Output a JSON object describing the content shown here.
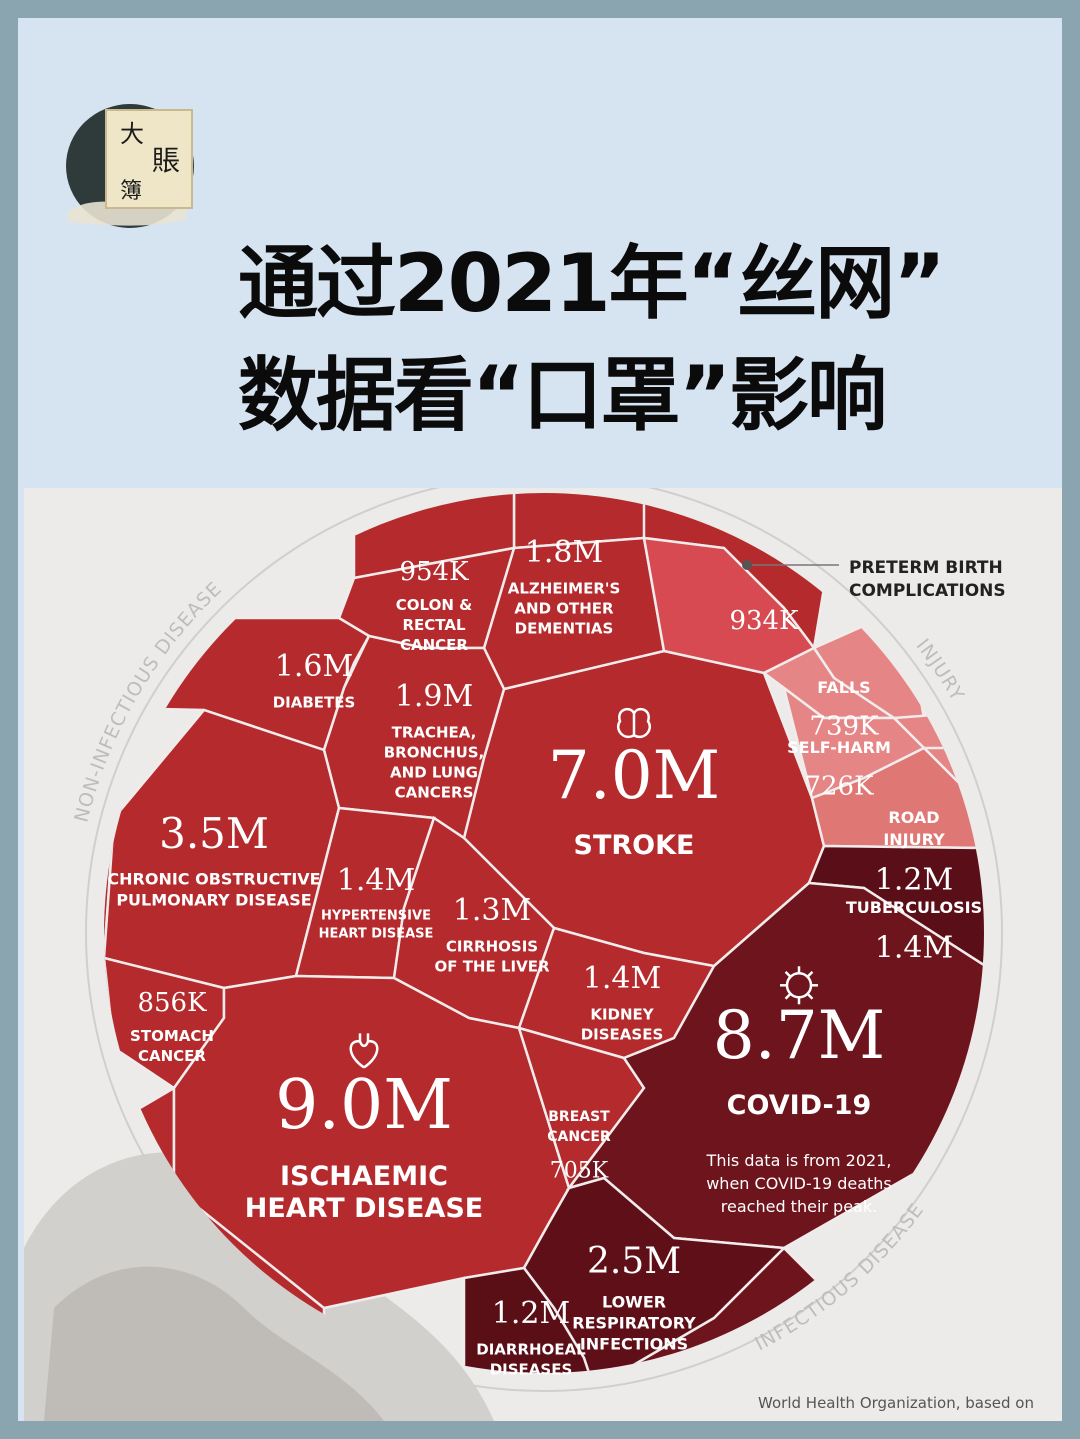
{
  "header": {
    "logo_text": [
      "大",
      "賬",
      "簿"
    ],
    "headline_line1": "通过2021年“丝网”",
    "headline_line2": "数据看“口罩”影响"
  },
  "chart_data": {
    "type": "voronoi",
    "unit": "deaths",
    "groups": [
      {
        "name": "NON-INFECTIOUS DISEASE",
        "color": "#b52a2d"
      },
      {
        "name": "INJURY",
        "color": "#e58585"
      },
      {
        "name": "INFECTIOUS DISEASE",
        "color": "#6e141c"
      }
    ],
    "cells": [
      {
        "id": "ischaemic",
        "group": "NON-INFECTIOUS DISEASE",
        "value_label": "9.0M",
        "value": 9.0,
        "label": [
          "ISCHAEMIC",
          "HEART DISEASE"
        ],
        "icon": "heart-icon"
      },
      {
        "id": "covid",
        "group": "INFECTIOUS DISEASE",
        "value_label": "8.7M",
        "value": 8.7,
        "label": [
          "COVID-19"
        ],
        "icon": "virus-icon",
        "note": [
          "This data is from 2021,",
          "when COVID-19 deaths",
          "reached their peak."
        ]
      },
      {
        "id": "stroke",
        "group": "NON-INFECTIOUS DISEASE",
        "value_label": "7.0M",
        "value": 7.0,
        "label": [
          "STROKE"
        ],
        "icon": "brain-icon"
      },
      {
        "id": "copd",
        "group": "NON-INFECTIOUS DISEASE",
        "value_label": "3.5M",
        "value": 3.5,
        "label": [
          "CHRONIC OBSTRUCTIVE",
          "PULMONARY DISEASE"
        ]
      },
      {
        "id": "lri",
        "group": "INFECTIOUS DISEASE",
        "value_label": "2.5M",
        "value": 2.5,
        "label": [
          "LOWER",
          "RESPIRATORY",
          "INFECTIONS"
        ]
      },
      {
        "id": "trachea",
        "group": "NON-INFECTIOUS DISEASE",
        "value_label": "1.9M",
        "value": 1.9,
        "label": [
          "TRACHEA,",
          "BRONCHUS,",
          "AND LUNG",
          "CANCERS"
        ]
      },
      {
        "id": "alz",
        "group": "NON-INFECTIOUS DISEASE",
        "value_label": "1.8M",
        "value": 1.8,
        "label": [
          "ALZHEIMER'S",
          "AND OTHER",
          "DEMENTIAS"
        ]
      },
      {
        "id": "diabetes",
        "group": "NON-INFECTIOUS DISEASE",
        "value_label": "1.6M",
        "value": 1.6,
        "label": [
          "DIABETES"
        ]
      },
      {
        "id": "hypert",
        "group": "NON-INFECTIOUS DISEASE",
        "value_label": "1.4M",
        "value": 1.4,
        "label": [
          "HYPERTENSIVE",
          "HEART DISEASE"
        ]
      },
      {
        "id": "kidney",
        "group": "NON-INFECTIOUS DISEASE",
        "value_label": "1.4M",
        "value": 1.4,
        "label": [
          "KIDNEY",
          "DISEASES"
        ]
      },
      {
        "id": "tb",
        "group": "INFECTIOUS DISEASE",
        "value_label": "1.4M",
        "value": 1.4,
        "label": [
          "TUBERCULOSIS"
        ]
      },
      {
        "id": "cirrhosis",
        "group": "NON-INFECTIOUS DISEASE",
        "value_label": "1.3M",
        "value": 1.3,
        "label": [
          "CIRRHOSIS",
          "OF THE LIVER"
        ]
      },
      {
        "id": "road",
        "group": "INJURY",
        "value_label": "1.2M",
        "value": 1.2,
        "label": [
          "ROAD",
          "INJURY"
        ]
      },
      {
        "id": "diarrhoeal",
        "group": "INFECTIOUS DISEASE",
        "value_label": "1.2M",
        "value": 1.2,
        "label": [
          "DIARRHOEAL",
          "DISEASES"
        ]
      },
      {
        "id": "colon",
        "group": "NON-INFECTIOUS DISEASE",
        "value_label": "954K",
        "value": 0.954,
        "label": [
          "COLON &",
          "RECTAL",
          "CANCER"
        ]
      },
      {
        "id": "preterm",
        "group": "NON-INFECTIOUS DISEASE",
        "value_label": "934K",
        "value": 0.934,
        "label": [
          "PRETERM BIRTH",
          "COMPLICATIONS"
        ]
      },
      {
        "id": "stomach",
        "group": "NON-INFECTIOUS DISEASE",
        "value_label": "856K",
        "value": 0.856,
        "label": [
          "STOMACH",
          "CANCER"
        ]
      },
      {
        "id": "falls",
        "group": "INJURY",
        "value_label": "739K",
        "value": 0.739,
        "label": [
          "FALLS"
        ]
      },
      {
        "id": "selfharm",
        "group": "INJURY",
        "value_label": "726K",
        "value": 0.726,
        "label": [
          "SELF-HARM"
        ]
      },
      {
        "id": "breast",
        "group": "NON-INFECTIOUS DISEASE",
        "value_label": "705K",
        "value": 0.705,
        "label": [
          "BREAST",
          "CANCER"
        ]
      }
    ],
    "source": "World Health Organization, based on"
  }
}
